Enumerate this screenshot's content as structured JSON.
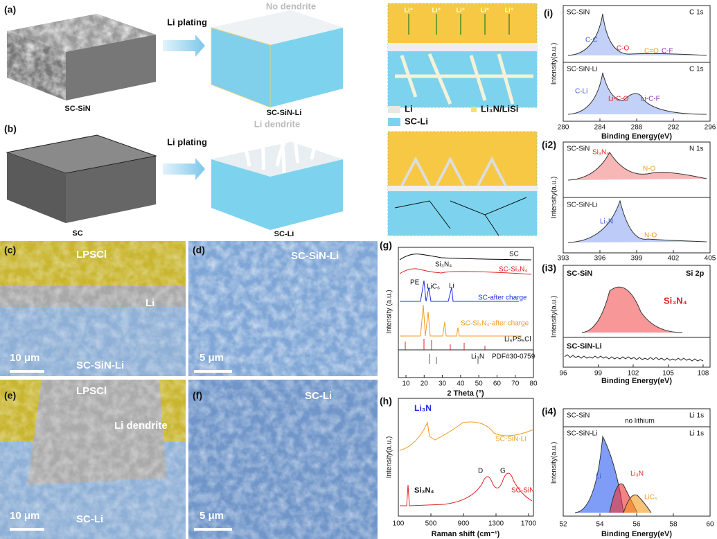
{
  "a": {
    "label": "(a)",
    "start": "SC-SiN",
    "process": "Li plating",
    "note": "No dendrite",
    "result": "SC-SiN-Li"
  },
  "b": {
    "label": "(b)",
    "start": "SC",
    "process": "Li plating",
    "note": "Li dendrite",
    "result": "SC-Li"
  },
  "ion": "Li⁺",
  "legend": [
    "Li",
    "Li₃N/LiSi",
    "SC-Li"
  ],
  "c": {
    "label": "(c)",
    "regions": [
      "LPSCl",
      "Li",
      "SC-SiN-Li"
    ],
    "scale": "10 μm"
  },
  "d": {
    "label": "(d)",
    "sample": "SC-SiN-Li",
    "scale": "5 μm"
  },
  "e": {
    "label": "(e)",
    "regions": [
      "LPSCl",
      "Li dendrite",
      "SC-Li"
    ],
    "scale": "10 μm"
  },
  "f": {
    "label": "(f)",
    "sample": "SC-Li",
    "scale": "5 μm"
  },
  "g": {
    "label": "(g)",
    "ylabel": "Intensity (a.u.)",
    "xlabel": "2 Theta (°)",
    "xticks": [
      10,
      20,
      30,
      40,
      50,
      60,
      70,
      80
    ],
    "traces": [
      "SC",
      "SC-Si₃N₄",
      "SC-after charge",
      "SC-Si₃N₄-after charge",
      "Li₆PS₅Cl",
      "PDF#30-0759"
    ],
    "peaks": [
      "Si₃N₄",
      "PE",
      "LiC₆",
      "Li",
      "Li₃N"
    ]
  },
  "h": {
    "label": "(h)",
    "ylabel": "Intensity(a.u.)",
    "xlabel": "Raman shift (cm⁻¹)",
    "xticks": [
      100,
      500,
      900,
      1300,
      1700
    ],
    "traces": [
      "SC-SiN-Li",
      "SC-SiN"
    ],
    "peaks": [
      "Li₃N",
      "D",
      "G",
      "Si₃N₄"
    ]
  },
  "i": [
    {
      "label": "(i)",
      "xticks": [
        280,
        284,
        288,
        292,
        296
      ],
      "xlabel": "Binding Energy(eV)",
      "ylabel": "Intensity(a.u.)",
      "top": {
        "sample": "SC-SiN",
        "region": "C 1s",
        "peaks": [
          "C-C",
          "C-O",
          "C=O",
          "C-F"
        ]
      },
      "bottom": {
        "sample": "SC-SiN-Li",
        "region": "C 1s",
        "peaks": [
          "C-Li",
          "Li-C-O",
          "Li-C-F"
        ]
      }
    },
    {
      "label": "(i2)",
      "xticks": [
        393,
        396,
        399,
        402,
        405
      ],
      "ylabel": "Intensity(a.u.)",
      "top": {
        "sample": "SC-SiN",
        "region": "N 1s",
        "peaks": [
          "Si₃N₄",
          "N-O"
        ]
      },
      "bottom": {
        "sample": "SC-SiN-Li",
        "peaks": [
          "Li₃N",
          "N-O"
        ]
      }
    },
    {
      "label": "(i3)",
      "xticks": [
        96,
        99,
        102,
        105,
        108
      ],
      "xlabel": "Binding Energy(eV)",
      "ylabel": "Intensity(a.u.)",
      "top": {
        "sample": "SC-SiN",
        "region": "Si 2p",
        "peaks": [
          "Si₃N₄"
        ]
      },
      "bottom": {
        "sample": "SC-SiN-Li"
      }
    },
    {
      "label": "(i4)",
      "xticks": [
        52,
        54,
        56,
        58,
        60
      ],
      "xlabel": "Binding Energy(eV)",
      "ylabel": "Intensity(a.u.)",
      "top": {
        "sample": "SC-SiN",
        "region": "Li 1s",
        "note": "no lithium"
      },
      "bottom": {
        "sample": "SC-SiN-Li",
        "region": "Li 1s",
        "peaks": [
          "Li",
          "Li₃N",
          "LiC₆"
        ]
      }
    }
  ]
}
